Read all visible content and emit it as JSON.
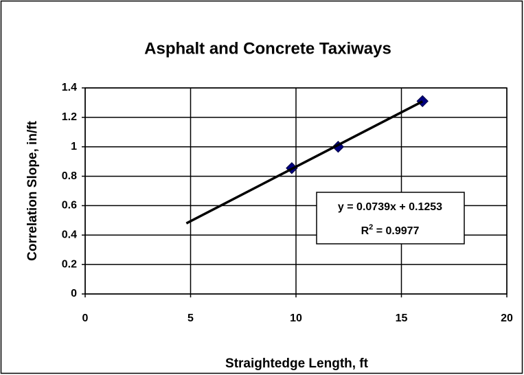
{
  "chart_data": {
    "type": "scatter",
    "title": "Asphalt and Concrete Taxiways",
    "x_label": "Straightedge Length, ft",
    "y_label": "Correlation Slope, in/ft",
    "series": [
      {
        "color": "#000080",
        "x": [
          9.8,
          12,
          16
        ],
        "values": [
          0.855,
          1.0,
          1.31
        ]
      }
    ],
    "trendline": {
      "color": "#000000",
      "x": [
        4.8,
        16
      ],
      "values": [
        0.48,
        1.308
      ]
    },
    "annotation": {
      "equation": "y = 0.0739x + 0.1253",
      "r_squared": [
        "R",
        "2",
        " = 0.9977"
      ]
    },
    "xlim": [
      0,
      20
    ],
    "xticks": [
      0,
      5,
      10,
      15,
      20
    ],
    "ylim": [
      0,
      1.4
    ],
    "yticks": [
      0,
      0.2,
      0.4,
      0.6,
      0.8,
      1,
      1.2,
      1.4
    ],
    "grid": true
  }
}
